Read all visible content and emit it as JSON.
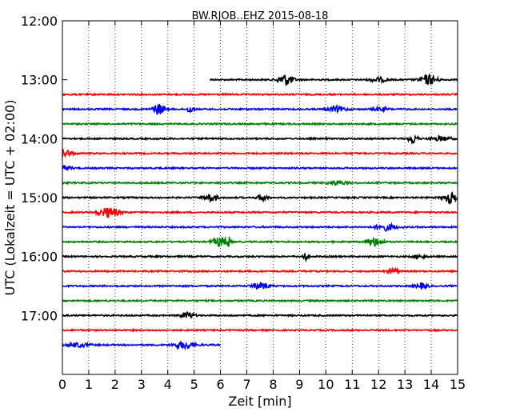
{
  "chart_data": {
    "type": "line",
    "title": "BW.RJOB..EHZ 2015-08-18",
    "xlabel": "Zeit  [min]",
    "ylabel": "UTC (Lokalzeit = UTC + 02:00)",
    "xlim": [
      0,
      15
    ],
    "ylim": [
      12.0,
      18.0
    ],
    "x_ticks": [
      0,
      1,
      2,
      3,
      4,
      5,
      6,
      7,
      8,
      9,
      10,
      11,
      12,
      13,
      14,
      15
    ],
    "x_tick_labels": [
      "0",
      "1",
      "2",
      "3",
      "4",
      "5",
      "6",
      "7",
      "8",
      "9",
      "10",
      "11",
      "12",
      "13",
      "14",
      "15"
    ],
    "y_tick_hours": [
      12,
      13,
      14,
      15,
      16,
      17
    ],
    "y_tick_labels": [
      "12:00",
      "13:00",
      "14:00",
      "15:00",
      "16:00",
      "17:00"
    ],
    "grid": "vertical dotted",
    "traces": [
      {
        "hour": 13.0,
        "x_start": 5.6,
        "x_end": 15,
        "color": "#000000"
      },
      {
        "hour": 13.25,
        "x_start": 0,
        "x_end": 15,
        "color": "#ff0000"
      },
      {
        "hour": 13.5,
        "x_start": 0,
        "x_end": 15,
        "color": "#0000ff"
      },
      {
        "hour": 13.75,
        "x_start": 0,
        "x_end": 15,
        "color": "#008000"
      },
      {
        "hour": 14.0,
        "x_start": 0,
        "x_end": 15,
        "color": "#000000"
      },
      {
        "hour": 14.25,
        "x_start": 0,
        "x_end": 15,
        "color": "#ff0000"
      },
      {
        "hour": 14.5,
        "x_start": 0,
        "x_end": 15,
        "color": "#0000ff"
      },
      {
        "hour": 14.75,
        "x_start": 0,
        "x_end": 15,
        "color": "#008000"
      },
      {
        "hour": 15.0,
        "x_start": 0,
        "x_end": 15,
        "color": "#000000"
      },
      {
        "hour": 15.25,
        "x_start": 0,
        "x_end": 15,
        "color": "#ff0000"
      },
      {
        "hour": 15.5,
        "x_start": 0,
        "x_end": 15,
        "color": "#0000ff"
      },
      {
        "hour": 15.75,
        "x_start": 0,
        "x_end": 15,
        "color": "#008000"
      },
      {
        "hour": 16.0,
        "x_start": 0,
        "x_end": 15,
        "color": "#000000"
      },
      {
        "hour": 16.25,
        "x_start": 0,
        "x_end": 15,
        "color": "#ff0000"
      },
      {
        "hour": 16.5,
        "x_start": 0,
        "x_end": 15,
        "color": "#0000ff"
      },
      {
        "hour": 16.75,
        "x_start": 0,
        "x_end": 15,
        "color": "#008000"
      },
      {
        "hour": 17.0,
        "x_start": 0,
        "x_end": 15,
        "color": "#000000"
      },
      {
        "hour": 17.25,
        "x_start": 0,
        "x_end": 15,
        "color": "#ff0000"
      },
      {
        "hour": 17.5,
        "x_start": 0,
        "x_end": 6.0,
        "color": "#0000ff"
      }
    ]
  }
}
